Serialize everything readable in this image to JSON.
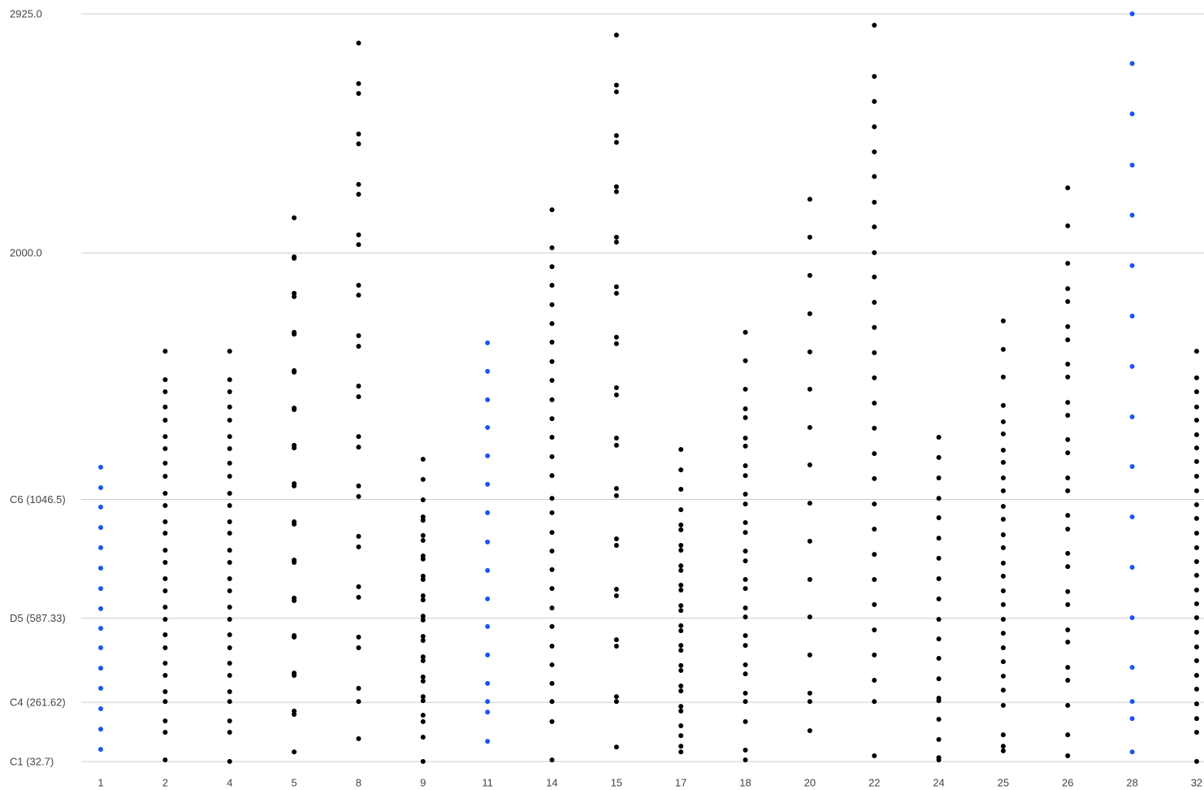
{
  "chart_data": {
    "type": "scatter",
    "categories": [
      "1",
      "2",
      "4",
      "5",
      "8",
      "9",
      "11",
      "14",
      "15",
      "17",
      "18",
      "20",
      "22",
      "24",
      "25",
      "26",
      "28",
      "32"
    ],
    "colors": [
      "#1a56f0",
      "#000000",
      "#000000",
      "#000000",
      "#000000",
      "#000000",
      "#1a56f0",
      "#000000",
      "#000000",
      "#000000",
      "#000000",
      "#000000",
      "#000000",
      "#000000",
      "#000000",
      "#000000",
      "#1a56f0",
      "#000000"
    ],
    "values": [
      [
        1171,
        1092,
        1017,
        938,
        860,
        781,
        702,
        624,
        548,
        473,
        394,
        316,
        237,
        158,
        80
      ],
      [
        1620,
        1510,
        1463,
        1404,
        1353,
        1290,
        1243,
        1187,
        1136,
        1070,
        1023,
        960,
        916,
        850,
        803,
        740,
        693,
        630,
        583,
        523,
        473,
        413,
        366,
        303,
        265,
        190,
        146,
        39
      ],
      [
        1620,
        1510,
        1463,
        1404,
        1353,
        1290,
        1243,
        1187,
        1136,
        1070,
        1023,
        960,
        916,
        850,
        803,
        740,
        693,
        630,
        583,
        523,
        473,
        413,
        366,
        303,
        265,
        190,
        146,
        33
      ],
      [
        2136,
        1985,
        1979,
        1844,
        1831,
        1693,
        1686,
        1545,
        1539,
        1400,
        1394,
        1256,
        1246,
        1108,
        1099,
        960,
        951,
        812,
        803,
        665,
        655,
        520,
        514,
        375,
        366,
        228,
        215,
        70
      ],
      [
        2812,
        2655,
        2617,
        2460,
        2422,
        2265,
        2227,
        2070,
        2032,
        1875,
        1837,
        1680,
        1639,
        1485,
        1444,
        1290,
        1249,
        1099,
        1058,
        904,
        863,
        709,
        668,
        514,
        473,
        316,
        265,
        121
      ],
      [
        1202,
        1124,
        1045,
        979,
        966,
        907,
        888,
        828,
        816,
        750,
        737,
        674,
        658,
        595,
        580,
        517,
        501,
        438,
        423,
        360,
        344,
        284,
        268,
        212,
        187,
        127,
        33
      ],
      [
        1652,
        1542,
        1432,
        1325,
        1215,
        1105,
        995,
        882,
        772,
        662,
        555,
        445,
        335,
        265,
        224,
        111
      ],
      [
        2167,
        2020,
        1947,
        1875,
        1800,
        1727,
        1655,
        1580,
        1507,
        1432,
        1359,
        1287,
        1212,
        1139,
        1051,
        995,
        919,
        847,
        775,
        702,
        627,
        555,
        479,
        407,
        335,
        265,
        187,
        39
      ],
      [
        2843,
        2649,
        2623,
        2454,
        2428,
        2256,
        2237,
        2061,
        2042,
        1869,
        1844,
        1674,
        1649,
        1479,
        1451,
        1284,
        1256,
        1089,
        1061,
        894,
        869,
        699,
        674,
        504,
        479,
        284,
        265,
        89
      ],
      [
        1240,
        1161,
        1086,
        1007,
        948,
        929,
        869,
        850,
        790,
        772,
        715,
        696,
        636,
        617,
        558,
        539,
        482,
        463,
        404,
        385,
        325,
        306,
        246,
        228,
        171,
        133,
        92,
        70
      ],
      [
        1693,
        1583,
        1473,
        1397,
        1363,
        1284,
        1253,
        1177,
        1139,
        1067,
        1029,
        957,
        919,
        847,
        809,
        737,
        702,
        627,
        592,
        520,
        482,
        407,
        372,
        297,
        265,
        187,
        77,
        39
      ],
      [
        2208,
        2061,
        1913,
        1765,
        1617,
        1473,
        1325,
        1180,
        1032,
        885,
        737,
        592,
        445,
        297,
        265,
        152
      ],
      [
        2881,
        2683,
        2586,
        2488,
        2391,
        2296,
        2196,
        2101,
        2001,
        1907,
        1809,
        1712,
        1614,
        1517,
        1419,
        1322,
        1224,
        1127,
        1029,
        932,
        834,
        737,
        640,
        542,
        445,
        347,
        265,
        55
      ],
      [
        1287,
        1209,
        1130,
        1051,
        976,
        897,
        819,
        740,
        662,
        583,
        507,
        432,
        353,
        278,
        268,
        196,
        118,
        48,
        39
      ],
      [
        1737,
        1627,
        1520,
        1410,
        1347,
        1300,
        1237,
        1190,
        1130,
        1080,
        1020,
        970,
        910,
        860,
        800,
        750,
        693,
        640,
        583,
        529,
        473,
        419,
        363,
        309,
        250,
        136,
        92,
        74
      ],
      [
        2252,
        2105,
        1960,
        1862,
        1812,
        1715,
        1664,
        1570,
        1520,
        1422,
        1372,
        1278,
        1227,
        1130,
        1080,
        985,
        932,
        838,
        787,
        690,
        640,
        542,
        495,
        397,
        347,
        250,
        136,
        55
      ],
      [
        70,
        199,
        265,
        397,
        589,
        784,
        979,
        1174,
        1366,
        1561,
        1756,
        1951,
        2146,
        2340,
        2538,
        2733,
        2925
      ],
      [
        1620,
        1517,
        1463,
        1404,
        1353,
        1297,
        1246,
        1193,
        1136,
        1080,
        1026,
        973,
        916,
        860,
        806,
        753,
        696,
        643,
        589,
        533,
        476,
        423,
        366,
        313,
        256,
        199,
        146,
        33
      ]
    ],
    "ylim": [
      32.7,
      2925
    ],
    "yticks": [
      {
        "value": 2925,
        "label": "2925.0"
      },
      {
        "value": 2000,
        "label": "2000.0"
      },
      {
        "value": 1046.5,
        "label": "C6 (1046.5)"
      },
      {
        "value": 587.33,
        "label": "D5 (587.33)"
      },
      {
        "value": 261.62,
        "label": "C4 (261.62)"
      },
      {
        "value": 32.7,
        "label": "C1 (32.7)"
      }
    ],
    "grid": true
  }
}
